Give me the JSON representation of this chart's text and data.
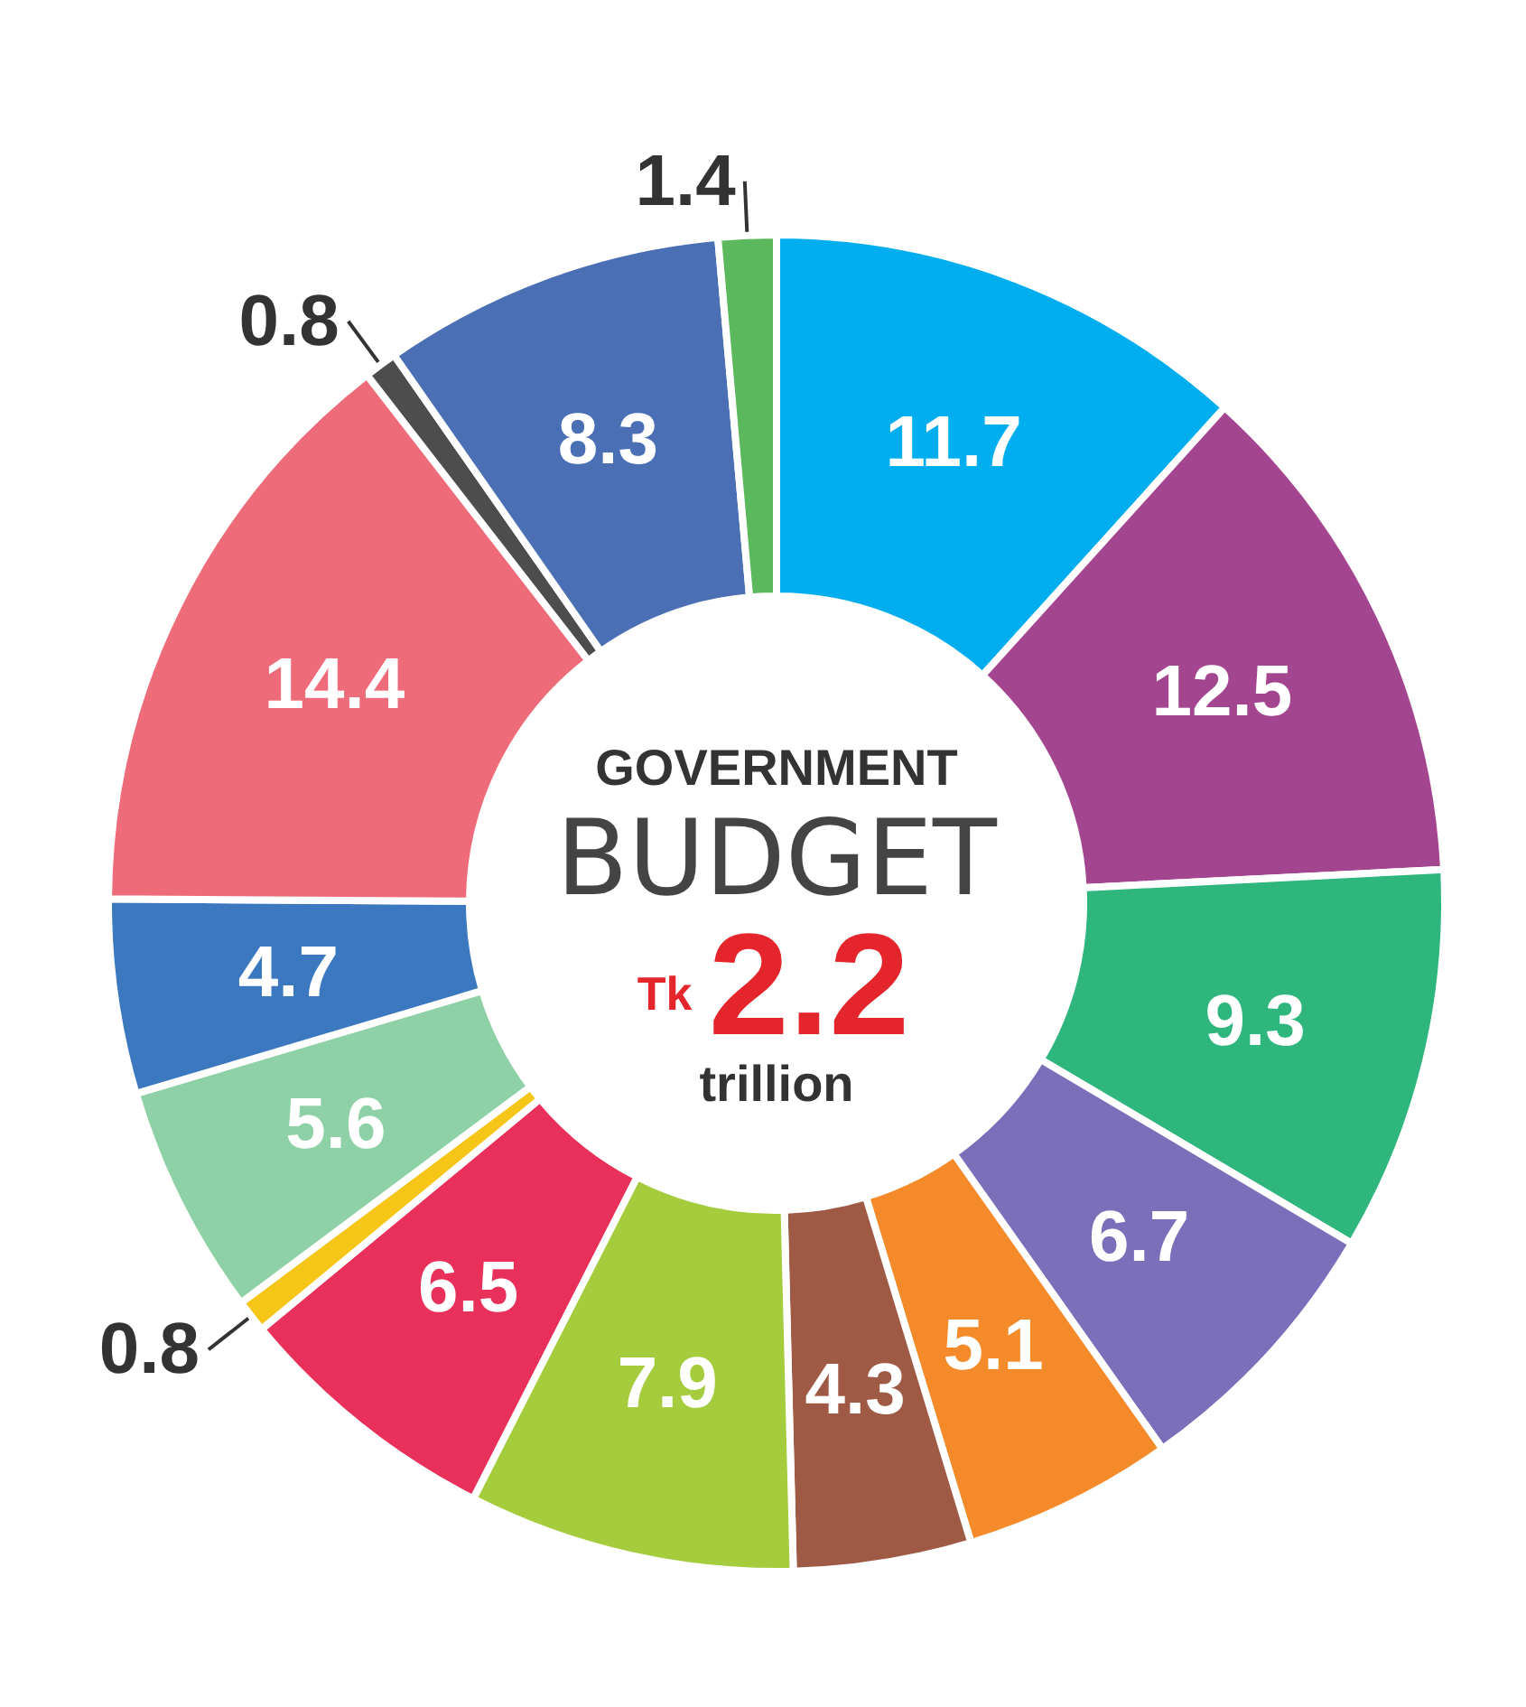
{
  "chart_data": {
    "type": "donut",
    "categories": [
      null,
      null,
      null,
      null,
      null,
      null,
      null,
      null,
      null,
      null,
      null,
      null,
      null,
      null,
      null
    ],
    "values": [
      11.7,
      12.5,
      9.3,
      6.7,
      5.1,
      4.3,
      7.9,
      6.5,
      0.8,
      5.6,
      4.7,
      14.4,
      0.8,
      8.3,
      1.4
    ],
    "colors": [
      "#00aeef",
      "#a3468f",
      "#2fb67c",
      "#7b6fba",
      "#f58a2a",
      "#9e5a44",
      "#a4cc3d",
      "#e8305a",
      "#f5c518",
      "#8fd1a6",
      "#3b78c0",
      "#ee6b7a",
      "#4d4d4d",
      "#4a6fb5",
      "#5cb85c"
    ],
    "annotations": [
      "GOVERNMENT",
      "BUDGET",
      "Tk",
      "2.2",
      "trillion"
    ],
    "data_labels": true
  }
}
